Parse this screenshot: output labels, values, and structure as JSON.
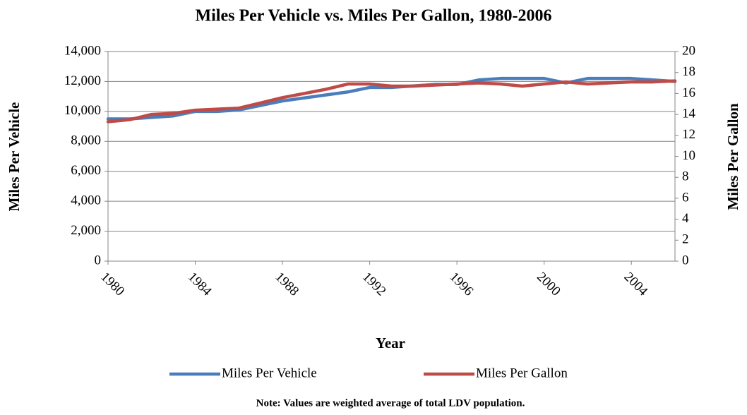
{
  "chart_data": {
    "type": "line",
    "title": "Miles Per Vehicle vs. Miles Per Gallon, 1980-2006",
    "xlabel": "Year",
    "ylabel": "Miles Per Vehicle",
    "y2label": "Miles Per Gallon",
    "note": "Note: Values are weighted average of total LDV population.",
    "x": [
      1980,
      1981,
      1982,
      1983,
      1984,
      1985,
      1986,
      1987,
      1988,
      1989,
      1990,
      1991,
      1992,
      1993,
      1994,
      1995,
      1996,
      1997,
      1998,
      1999,
      2000,
      2001,
      2002,
      2003,
      2004,
      2005,
      2006
    ],
    "series": [
      {
        "name": "Miles Per Vehicle",
        "color": "#4a7ebb",
        "axis": "y",
        "values": [
          9500,
          9500,
          9600,
          9700,
          10000,
          10000,
          10100,
          10400,
          10700,
          10900,
          11100,
          11300,
          11600,
          11600,
          11700,
          11800,
          11800,
          12100,
          12200,
          12200,
          12200,
          11900,
          12200,
          12200,
          12200,
          12100,
          12000
        ]
      },
      {
        "name": "Miles Per Gallon",
        "color": "#be4b48",
        "axis": "y2",
        "values": [
          13.3,
          13.5,
          14.0,
          14.1,
          14.4,
          14.5,
          14.6,
          15.1,
          15.6,
          16.0,
          16.4,
          16.9,
          16.9,
          16.7,
          16.7,
          16.8,
          16.9,
          17.0,
          16.9,
          16.7,
          16.9,
          17.1,
          16.9,
          17.0,
          17.1,
          17.1,
          17.2
        ]
      }
    ],
    "xlim": [
      1980,
      2006
    ],
    "xticks": [
      1980,
      1984,
      1988,
      1992,
      1996,
      2000,
      2004
    ],
    "ylim": [
      0,
      14000
    ],
    "yticks": [
      0,
      {
        "value": 2000,
        "label": "2,000"
      },
      {
        "value": 4000,
        "label": "4,000"
      },
      {
        "value": 6000,
        "label": "6,000"
      },
      {
        "value": 8000,
        "label": "8,000"
      },
      {
        "value": 10000,
        "label": "10,000"
      },
      {
        "value": 12000,
        "label": "12,000"
      },
      {
        "value": 14000,
        "label": "14,000"
      }
    ],
    "y2lim": [
      0,
      20
    ],
    "y2ticks": [
      0,
      2,
      4,
      6,
      8,
      10,
      12,
      14,
      16,
      18,
      20
    ],
    "grid": true,
    "legend": "bottom"
  }
}
